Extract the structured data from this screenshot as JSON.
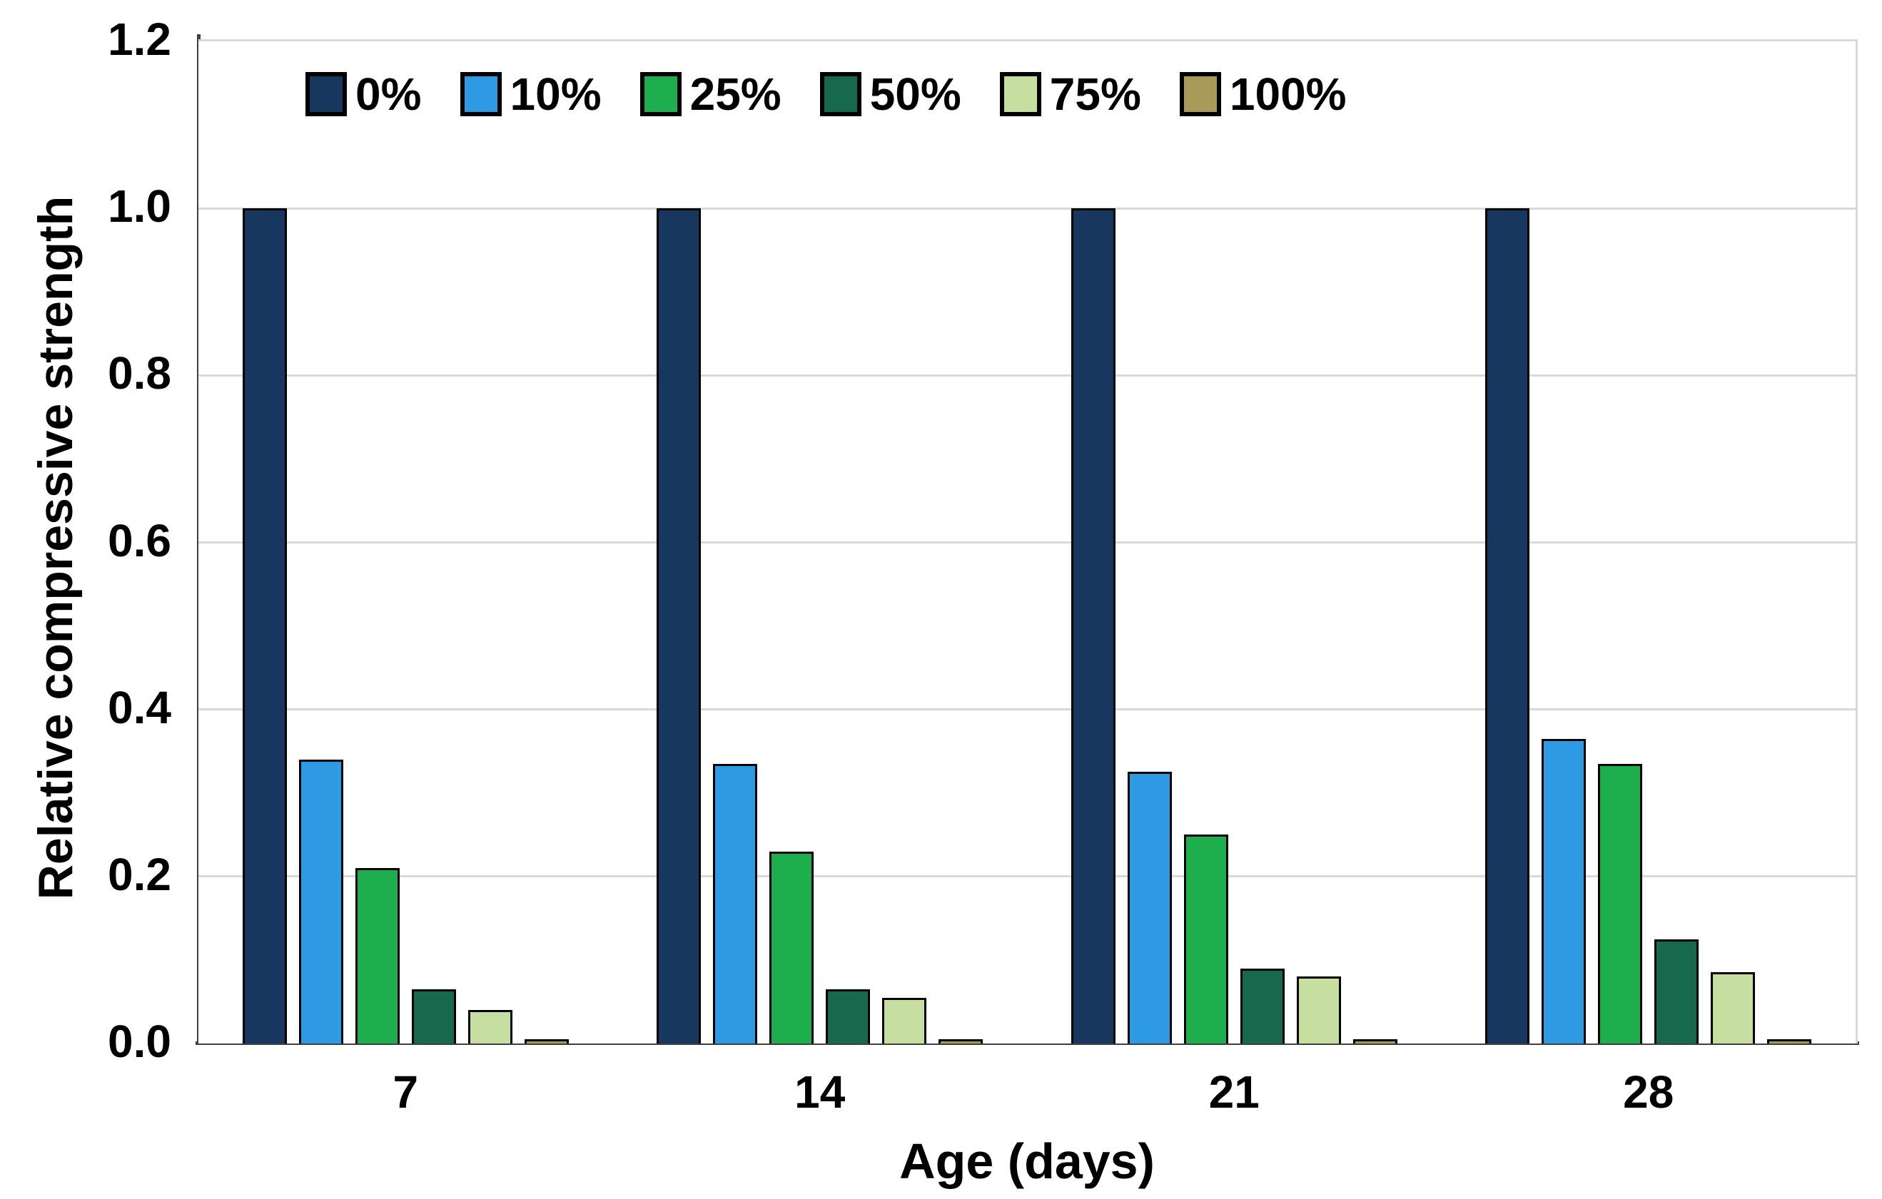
{
  "figure": {
    "y_axis_title": "Relative compressive strength",
    "x_axis_title": "Age (days)"
  },
  "chart_data": {
    "type": "bar",
    "title": "",
    "xlabel": "Age (days)",
    "ylabel": "Relative compressive strength",
    "categories": [
      "7",
      "14",
      "21",
      "28"
    ],
    "series": [
      {
        "name": "0%",
        "color": "#17375e",
        "values": [
          1.0,
          1.0,
          1.0,
          1.0
        ]
      },
      {
        "name": "10%",
        "color": "#2e9ae4",
        "values": [
          0.34,
          0.335,
          0.325,
          0.365
        ]
      },
      {
        "name": "25%",
        "color": "#1fae4d",
        "values": [
          0.21,
          0.23,
          0.25,
          0.335
        ]
      },
      {
        "name": "50%",
        "color": "#16694d",
        "values": [
          0.065,
          0.065,
          0.09,
          0.125
        ]
      },
      {
        "name": "75%",
        "color": "#c6dfa0",
        "values": [
          0.04,
          0.055,
          0.08,
          0.085
        ]
      },
      {
        "name": "100%",
        "color": "#a89a58",
        "values": [
          0.005,
          0.005,
          0.005,
          0.005
        ]
      }
    ],
    "ylim": [
      0,
      1.2
    ],
    "y_ticks": [
      1.2,
      1.0,
      0.8,
      0.6,
      0.4,
      0.2,
      0.0
    ],
    "y_tick_labels": [
      "1.2",
      "1.0",
      "0.8",
      "0.6",
      "0.4",
      "0.2",
      "0.0"
    ],
    "grid": "horizontal",
    "legend_position": "top-inside",
    "colors": {
      "gridline": "#d9d9d9",
      "axis_line": "#3f3f3f",
      "bar_border": "#000000",
      "text": "#000000",
      "background": "#ffffff"
    }
  }
}
